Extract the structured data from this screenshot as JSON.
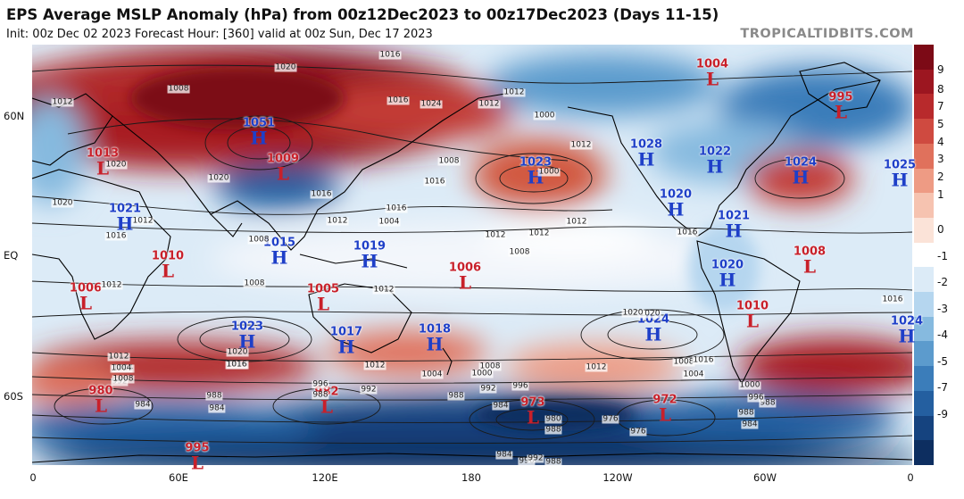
{
  "header": {
    "title": "EPS Average MSLP Anomaly (hPa) from 00z12Dec2023 to 00z17Dec2023 (Days 11-15)",
    "subtitle": "Init: 00z Dec 02 2023   Forecast Hour: [360]   valid at 00z Sun, Dec 17 2023",
    "site": "TROPICALTIDBITS.COM"
  },
  "axes": {
    "lat_labels": [
      "60N",
      "EQ",
      "60S"
    ],
    "lon_labels": [
      "0",
      "60E",
      "120E",
      "180",
      "120W",
      "60W",
      "0"
    ]
  },
  "colorbar": {
    "ticks": [
      "9",
      "8",
      "7",
      "5",
      "4",
      "3",
      "2",
      "1",
      "0",
      "-1",
      "-2",
      "-3",
      "-4",
      "-5",
      "-7",
      "-9"
    ],
    "colors": [
      "#7c0a16",
      "#9c1620",
      "#b82a2c",
      "#cf4a40",
      "#e0715c",
      "#ee9b84",
      "#f6c3b0",
      "#fbe3d8",
      "#ffffff",
      "#dcebf7",
      "#b5d6ef",
      "#86badf",
      "#5c9bcd",
      "#3b7dba",
      "#245fa0",
      "#15437f",
      "#0d2e60"
    ]
  },
  "centers": [
    {
      "t": "L",
      "v": "1004"
    },
    {
      "t": "L",
      "v": "995"
    },
    {
      "t": "H",
      "v": "1051"
    },
    {
      "t": "L",
      "v": "1013"
    },
    {
      "t": "L",
      "v": "1009"
    },
    {
      "t": "H",
      "v": "1023"
    },
    {
      "t": "H",
      "v": "1028"
    },
    {
      "t": "H",
      "v": "1022"
    },
    {
      "t": "H",
      "v": "1024"
    },
    {
      "t": "H",
      "v": "1025"
    },
    {
      "t": "H",
      "v": "1021"
    },
    {
      "t": "H",
      "v": "1020"
    },
    {
      "t": "H",
      "v": "1021"
    },
    {
      "t": "L",
      "v": "1010"
    },
    {
      "t": "H",
      "v": "1015"
    },
    {
      "t": "H",
      "v": "1019"
    },
    {
      "t": "L",
      "v": "1006"
    },
    {
      "t": "L",
      "v": "1008"
    },
    {
      "t": "L",
      "v": "1006"
    },
    {
      "t": "L",
      "v": "1005"
    },
    {
      "t": "H",
      "v": "1020"
    },
    {
      "t": "H",
      "v": "1023"
    },
    {
      "t": "H",
      "v": "1017"
    },
    {
      "t": "H",
      "v": "1018"
    },
    {
      "t": "H",
      "v": "1024"
    },
    {
      "t": "L",
      "v": "1010"
    },
    {
      "t": "H",
      "v": "1024"
    },
    {
      "t": "L",
      "v": "980"
    },
    {
      "t": "L",
      "v": "982"
    },
    {
      "t": "L",
      "v": "973"
    },
    {
      "t": "L",
      "v": "972"
    },
    {
      "t": "L",
      "v": "995"
    }
  ],
  "isobar_labels": [
    "1016",
    "1020",
    "1008",
    "1012",
    "1016",
    "1024",
    "1012",
    "1000",
    "1012",
    "1008",
    "1016",
    "1004",
    "1000",
    "1012",
    "1020",
    "1020",
    "1016",
    "1012",
    "1016",
    "1012",
    "1012",
    "1008",
    "1008",
    "1012",
    "1016",
    "1016",
    "1020",
    "1020",
    "1012",
    "1016",
    "1012",
    "1008",
    "1012",
    "1004",
    "992",
    "988",
    "984",
    "996",
    "992",
    "988",
    "984",
    "1012",
    "1008",
    "1004",
    "1000",
    "996",
    "992",
    "988",
    "984",
    "980",
    "976",
    "988",
    "1004",
    "1008",
    "1016",
    "1012",
    "1020",
    "1000",
    "996",
    "988",
    "984",
    "976",
    "988",
    "984",
    "996",
    "992",
    "988",
    "1012",
    "1016",
    "1020",
    "1016",
    "1004",
    "1008"
  ]
}
